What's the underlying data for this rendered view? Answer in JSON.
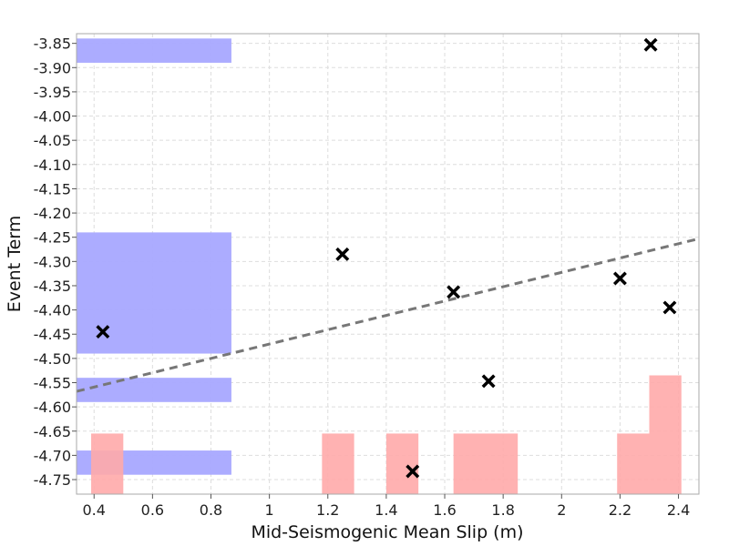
{
  "chart_data": {
    "type": "scatter",
    "title": "",
    "xlabel": "Mid-Seismogenic Mean Slip (m)",
    "ylabel": "Event Term",
    "xlim": [
      0.34,
      2.47
    ],
    "ylim": [
      -4.78,
      -3.83
    ],
    "x_ticks": [
      {
        "value": 0.4,
        "label": "0.4"
      },
      {
        "value": 0.6,
        "label": "0.6"
      },
      {
        "value": 0.8,
        "label": "0.8"
      },
      {
        "value": 1.0,
        "label": "1"
      },
      {
        "value": 1.2,
        "label": "1.2"
      },
      {
        "value": 1.4,
        "label": "1.4"
      },
      {
        "value": 1.6,
        "label": "1.6"
      },
      {
        "value": 1.8,
        "label": "1.8"
      },
      {
        "value": 2.0,
        "label": "2"
      },
      {
        "value": 2.2,
        "label": "2.2"
      },
      {
        "value": 2.4,
        "label": "2.4"
      }
    ],
    "y_ticks": [
      {
        "value": -3.85,
        "label": "-3.85"
      },
      {
        "value": -3.9,
        "label": "-3.90"
      },
      {
        "value": -3.95,
        "label": "-3.95"
      },
      {
        "value": -4.0,
        "label": "-4.00"
      },
      {
        "value": -4.05,
        "label": "-4.05"
      },
      {
        "value": -4.1,
        "label": "-4.10"
      },
      {
        "value": -4.15,
        "label": "-4.15"
      },
      {
        "value": -4.2,
        "label": "-4.20"
      },
      {
        "value": -4.25,
        "label": "-4.25"
      },
      {
        "value": -4.3,
        "label": "-4.30"
      },
      {
        "value": -4.35,
        "label": "-4.35"
      },
      {
        "value": -4.4,
        "label": "-4.40"
      },
      {
        "value": -4.45,
        "label": "-4.45"
      },
      {
        "value": -4.5,
        "label": "-4.50"
      },
      {
        "value": -4.55,
        "label": "-4.55"
      },
      {
        "value": -4.6,
        "label": "-4.60"
      },
      {
        "value": -4.65,
        "label": "-4.65"
      },
      {
        "value": -4.7,
        "label": "-4.70"
      },
      {
        "value": -4.75,
        "label": "-4.75"
      }
    ],
    "grid": true,
    "points": [
      {
        "x": 0.43,
        "y": -4.445
      },
      {
        "x": 1.25,
        "y": -4.285
      },
      {
        "x": 1.49,
        "y": -4.733
      },
      {
        "x": 1.63,
        "y": -4.363
      },
      {
        "x": 1.75,
        "y": -4.547
      },
      {
        "x": 2.2,
        "y": -4.335
      },
      {
        "x": 2.305,
        "y": -3.853
      },
      {
        "x": 2.37,
        "y": -4.395
      }
    ],
    "trend_line": {
      "x": [
        0.34,
        2.47
      ],
      "y": [
        -4.568,
        -4.253
      ],
      "style": "dashed"
    },
    "y_histogram_bars": [
      {
        "y_from": -3.84,
        "y_to": -3.89,
        "x_from": 0.34,
        "x_to": 0.87
      },
      {
        "y_from": -4.24,
        "y_to": -4.49,
        "x_from": 0.34,
        "x_to": 0.87
      },
      {
        "y_from": -4.54,
        "y_to": -4.59,
        "x_from": 0.34,
        "x_to": 0.87
      },
      {
        "y_from": -4.69,
        "y_to": -4.74,
        "x_from": 0.34,
        "x_to": 0.87
      }
    ],
    "x_histogram_bars": [
      {
        "x_from": 0.39,
        "x_to": 0.5,
        "y_from": -4.78,
        "y_to": -4.655
      },
      {
        "x_from": 1.18,
        "x_to": 1.29,
        "y_from": -4.78,
        "y_to": -4.655
      },
      {
        "x_from": 1.4,
        "x_to": 1.51,
        "y_from": -4.78,
        "y_to": -4.655
      },
      {
        "x_from": 1.63,
        "x_to": 1.85,
        "y_from": -4.78,
        "y_to": -4.655
      },
      {
        "x_from": 2.19,
        "x_to": 2.3,
        "y_from": -4.78,
        "y_to": -4.655
      },
      {
        "x_from": 2.3,
        "x_to": 2.41,
        "y_from": -4.78,
        "y_to": -4.535
      }
    ],
    "colors": {
      "marker": "#000000",
      "trend_line": "#777777",
      "y_histogram": "#a8a8ff",
      "x_histogram": "#ffaaaa",
      "grid": "#dddddd",
      "frame": "#aaaaaa"
    }
  }
}
